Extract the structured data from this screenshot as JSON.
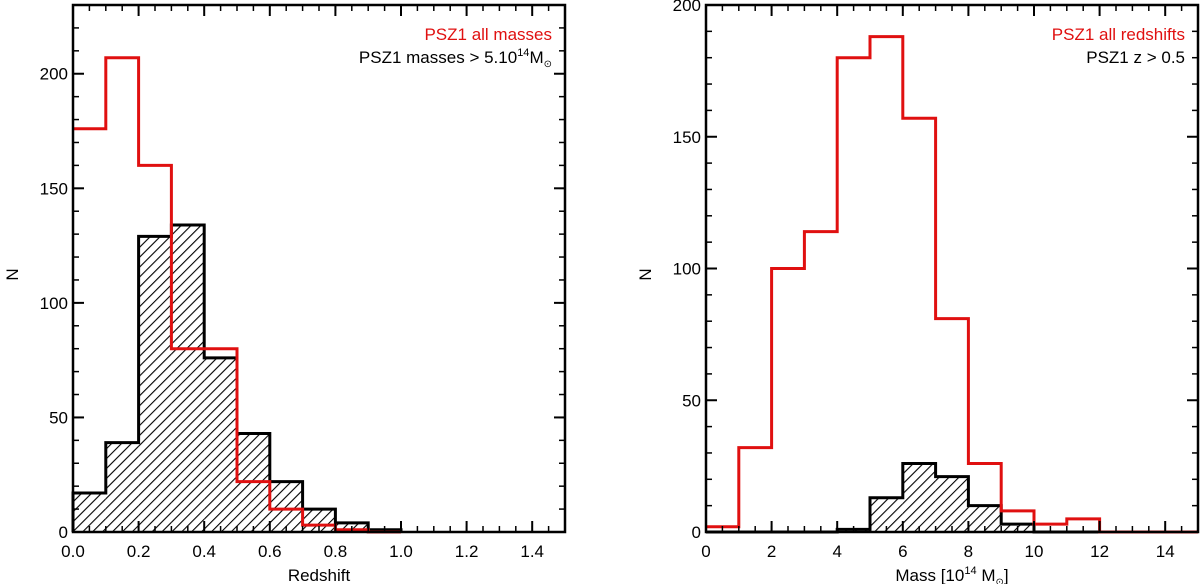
{
  "chart_data": [
    {
      "type": "histogram",
      "xlabel": "Redshift",
      "ylabel": "N",
      "xlim": [
        0.0,
        1.5
      ],
      "ylim": [
        0,
        230
      ],
      "x_ticks": [
        0.0,
        0.2,
        0.4,
        0.6,
        0.8,
        1.0,
        1.2,
        1.4
      ],
      "x_tick_labels": [
        "0.0",
        "0.2",
        "0.4",
        "0.6",
        "0.8",
        "1.0",
        "1.2",
        "1.4"
      ],
      "y_ticks": [
        0,
        50,
        100,
        150,
        200
      ],
      "y_tick_labels": [
        "0",
        "50",
        "100",
        "150",
        "200"
      ],
      "legend_position": "top-right",
      "bin_edges": [
        0.0,
        0.1,
        0.2,
        0.3,
        0.4,
        0.5,
        0.6,
        0.7,
        0.8,
        0.9,
        1.0
      ],
      "series": [
        {
          "name": "PSZ1 all masses",
          "style": "step",
          "color": "#e01010",
          "values": [
            176,
            207,
            160,
            80,
            80,
            22,
            10,
            3,
            1,
            0
          ]
        },
        {
          "name": "PSZ1 masses > 5.10",
          "name_superscript": "14",
          "name_suffix": "M",
          "name_suffix_sub": "⊙",
          "style": "hatched",
          "color": "#000000",
          "values": [
            17,
            39,
            129,
            134,
            76,
            43,
            22,
            10,
            4,
            1
          ]
        }
      ]
    },
    {
      "type": "histogram",
      "xlabel": "Mass [10",
      "xlabel_superscript": "14",
      "xlabel_suffix": " M",
      "xlabel_suffix_sub": "⊙",
      "xlabel_close": "]",
      "ylabel": "N",
      "xlim": [
        0,
        15
      ],
      "ylim": [
        0,
        200
      ],
      "x_ticks": [
        0,
        2,
        4,
        6,
        8,
        10,
        12,
        14
      ],
      "x_tick_labels": [
        "0",
        "2",
        "4",
        "6",
        "8",
        "10",
        "12",
        "14"
      ],
      "y_ticks": [
        0,
        50,
        100,
        150,
        200
      ],
      "y_tick_labels": [
        "0",
        "50",
        "100",
        "150",
        "200"
      ],
      "legend_position": "top-right",
      "bin_edges": [
        0,
        1,
        2,
        3,
        4,
        5,
        6,
        7,
        8,
        9,
        10,
        11,
        12,
        13,
        14,
        15
      ],
      "series": [
        {
          "name": "PSZ1 all redshifts",
          "style": "step",
          "color": "#e01010",
          "values": [
            2,
            32,
            100,
            114,
            180,
            188,
            157,
            81,
            26,
            8,
            3,
            5,
            0,
            0,
            0
          ]
        },
        {
          "name": "PSZ1 z > 0.5",
          "style": "hatched",
          "color": "#000000",
          "values": [
            0,
            0,
            0,
            0,
            1,
            13,
            26,
            21,
            10,
            3,
            0,
            0,
            0,
            0,
            0
          ]
        }
      ]
    }
  ]
}
